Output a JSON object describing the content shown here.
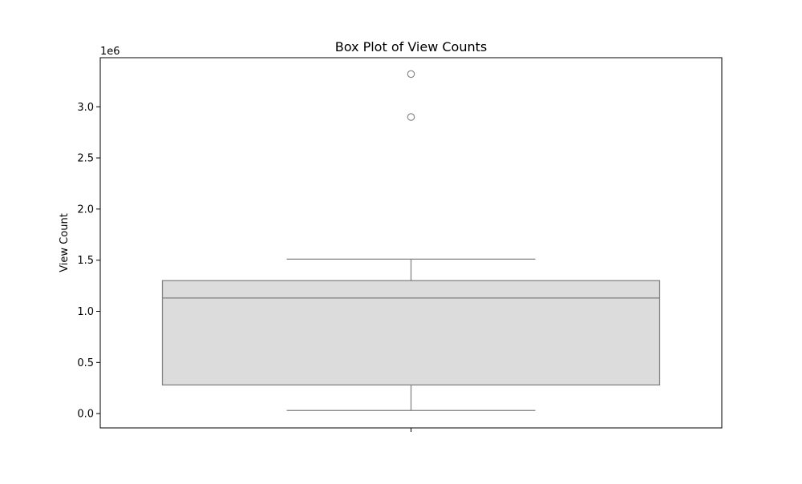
{
  "chart_data": {
    "type": "box",
    "title": "Box Plot of View Counts",
    "xlabel": "",
    "ylabel": "View Count",
    "offset_label": "1e6",
    "y_ticks": [
      0.0,
      0.5,
      1.0,
      1.5,
      2.0,
      2.5,
      3.0
    ],
    "y_tick_labels": [
      "0.0",
      "0.5",
      "1.0",
      "1.5",
      "2.0",
      "2.5",
      "3.0"
    ],
    "ylim": [
      -140000,
      3480000
    ],
    "grid": false,
    "legend": "none",
    "box": {
      "whisker_low": 30000,
      "q1": 280000,
      "median": 1130000,
      "q3": 1300000,
      "whisker_high": 1510000,
      "outliers": [
        2900000,
        3320000
      ]
    },
    "colors": {
      "box_fill": "#dcdcdc",
      "line": "#808080",
      "axes": "#000000"
    }
  }
}
